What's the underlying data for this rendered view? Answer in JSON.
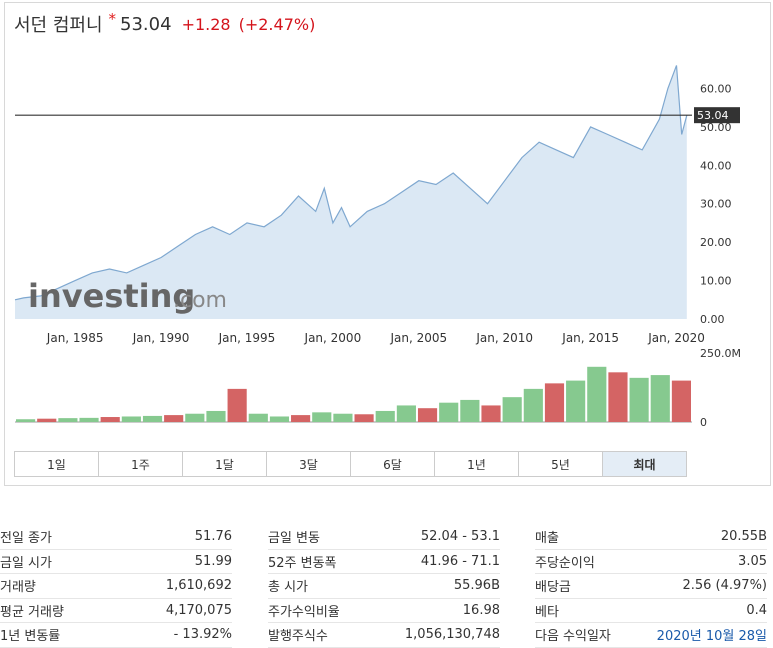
{
  "header": {
    "name": "서던 컴퍼니",
    "indicator": "*",
    "price": "53.04",
    "change": "+1.28",
    "change_pct": "(+2.47%)"
  },
  "colors": {
    "area_fill": "#dbe8f4",
    "area_line": "#7fa8d0",
    "price_line": "#333333",
    "vol_up": "#86c98f",
    "vol_down": "#d46464",
    "negative": "#d4141c"
  },
  "logo": {
    "brand": "investing",
    "suffix": ".com"
  },
  "price_label": "53.04",
  "chart_data": {
    "type": "area",
    "x": [
      1981.5,
      1982,
      1983,
      1984,
      1985,
      1986,
      1987,
      1988,
      1989,
      1990,
      1991,
      1992,
      1993,
      1994,
      1995,
      1996,
      1997,
      1998,
      1999,
      1999.5,
      2000,
      2000.5,
      2001,
      2002,
      2003,
      2004,
      2005,
      2006,
      2007,
      2008,
      2009,
      2010,
      2011,
      2012,
      2013,
      2014,
      2015,
      2016,
      2017,
      2018,
      2019,
      2019.5,
      2020,
      2020.3,
      2020.6
    ],
    "values": [
      5,
      5.5,
      6,
      8,
      10,
      12,
      13,
      12,
      14,
      16,
      19,
      22,
      24,
      22,
      25,
      24,
      27,
      32,
      28,
      34,
      25,
      29,
      24,
      28,
      30,
      33,
      36,
      35,
      38,
      34,
      30,
      36,
      42,
      46,
      44,
      42,
      50,
      48,
      46,
      44,
      52,
      60,
      66,
      48,
      53
    ],
    "x_ticks": [
      "Jan, 1985",
      "Jan, 1990",
      "Jan, 1995",
      "Jan, 2000",
      "Jan, 2005",
      "Jan, 2010",
      "Jan, 2015",
      "Jan, 2020"
    ],
    "x_tick_values": [
      1985,
      1990,
      1995,
      2000,
      2005,
      2010,
      2015,
      2020
    ],
    "y_ticks": [
      "0.00",
      "10.00",
      "20.00",
      "30.00",
      "40.00",
      "50.00",
      "60.00"
    ],
    "ylim": [
      0,
      70
    ],
    "xlim": [
      1981.5,
      2020.9
    ],
    "volume": {
      "ticks": [
        "250.0M",
        "0"
      ],
      "max": 250,
      "unit": "M",
      "bars": [
        10,
        12,
        14,
        15,
        18,
        20,
        22,
        25,
        30,
        40,
        120,
        30,
        20,
        25,
        35,
        30,
        28,
        40,
        60,
        50,
        70,
        80,
        60,
        90,
        120,
        140,
        150,
        200,
        180,
        160,
        170,
        150
      ]
    }
  },
  "ranges": [
    "1일",
    "1주",
    "1달",
    "3달",
    "6달",
    "1년",
    "5년",
    "최대"
  ],
  "active_range": "최대",
  "stats": {
    "col1": [
      {
        "label": "전일 종가",
        "value": "51.76"
      },
      {
        "label": "금일 시가",
        "value": "51.99"
      },
      {
        "label": "거래량",
        "value": "1,610,692"
      },
      {
        "label": "평균 거래량",
        "value": "4,170,075"
      },
      {
        "label": "1년 변동률",
        "value": "- 13.92%"
      }
    ],
    "col2": [
      {
        "label": "금일 변동",
        "value": "52.04 - 53.1"
      },
      {
        "label": "52주 변동폭",
        "value": "41.96 - 71.1"
      },
      {
        "label": "총 시가",
        "value": "55.96B"
      },
      {
        "label": "주가수익비율",
        "value": "16.98"
      },
      {
        "label": "발행주식수",
        "value": "1,056,130,748"
      }
    ],
    "col3": [
      {
        "label": "매출",
        "value": "20.55B"
      },
      {
        "label": "주당순이익",
        "value": "3.05"
      },
      {
        "label": "배당금",
        "value": "2.56 (4.97%)"
      },
      {
        "label": "베타",
        "value": "0.4"
      },
      {
        "label": "다음 수익일자",
        "value": "2020년 10월 28일",
        "link": true
      }
    ]
  }
}
